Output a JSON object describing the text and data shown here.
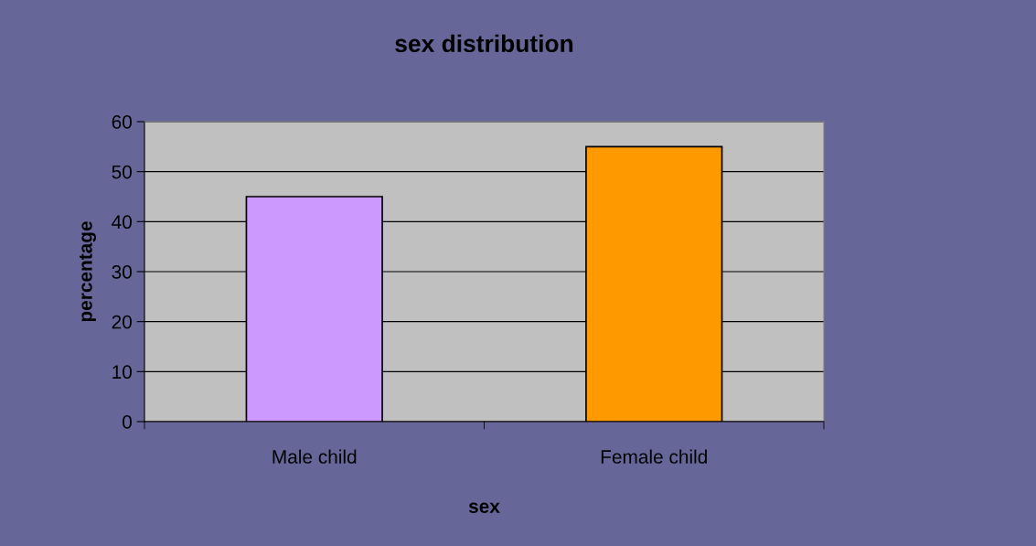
{
  "chart_data": {
    "type": "bar",
    "title": "sex distribution",
    "xlabel": "sex",
    "ylabel": "percentage",
    "categories": [
      "Male child",
      "Female child"
    ],
    "values": [
      45,
      55
    ],
    "colors": [
      "#cc99ff",
      "#ff9900"
    ],
    "ylim": [
      0,
      60
    ],
    "yticks": [
      0,
      10,
      20,
      30,
      40,
      50,
      60
    ],
    "grid": "y",
    "legend": false
  }
}
